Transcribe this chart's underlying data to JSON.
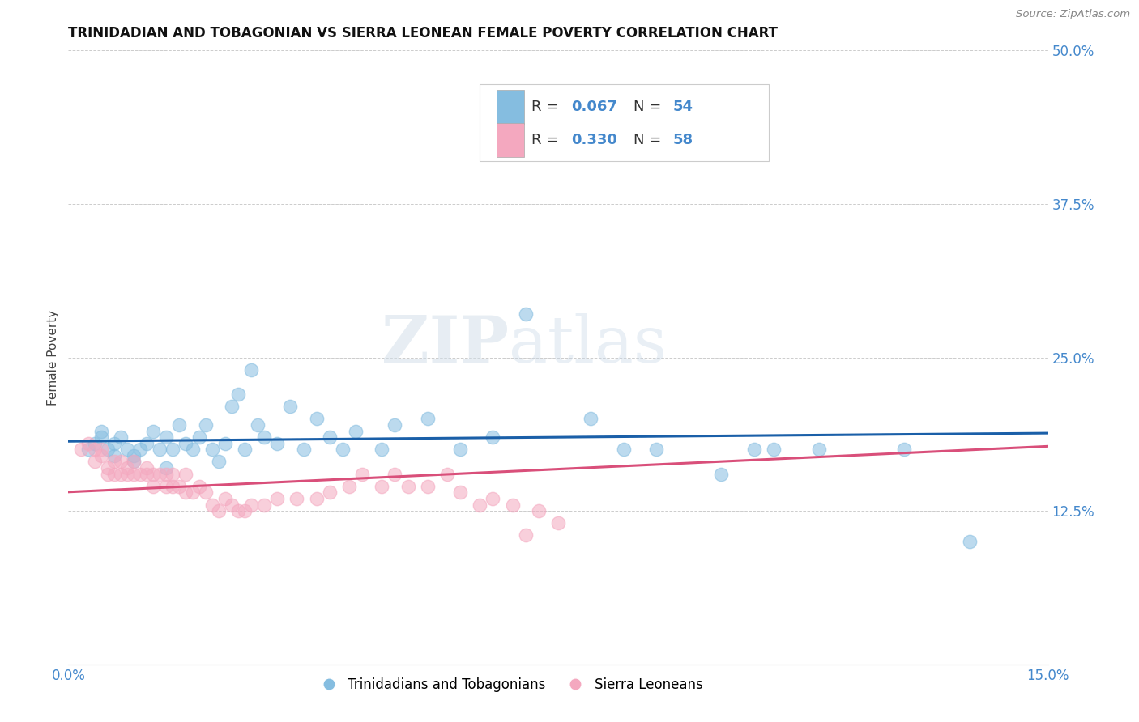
{
  "title": "TRINIDADIAN AND TOBAGONIAN VS SIERRA LEONEAN FEMALE POVERTY CORRELATION CHART",
  "source": "Source: ZipAtlas.com",
  "ylabel_label": "Female Poverty",
  "x_min": 0.0,
  "x_max": 0.15,
  "y_min": 0.0,
  "y_max": 0.5,
  "x_ticks": [
    0.0,
    0.05,
    0.1,
    0.15
  ],
  "x_tick_labels": [
    "0.0%",
    "",
    "",
    "15.0%"
  ],
  "y_ticks": [
    0.0,
    0.125,
    0.25,
    0.375,
    0.5
  ],
  "y_tick_labels": [
    "",
    "12.5%",
    "25.0%",
    "37.5%",
    "50.0%"
  ],
  "legend_bottom_label1": "Trinidadians and Tobagonians",
  "legend_bottom_label2": "Sierra Leoneans",
  "blue_color": "#85bde0",
  "pink_color": "#f4a8bf",
  "blue_line_color": "#1a5fa8",
  "pink_line_color": "#d94f7a",
  "blue_dashed_color": "#b0cfe8",
  "watermark_text": "ZIPatlas",
  "blue_scatter_x": [
    0.003,
    0.004,
    0.005,
    0.005,
    0.006,
    0.007,
    0.007,
    0.008,
    0.009,
    0.01,
    0.01,
    0.011,
    0.012,
    0.013,
    0.014,
    0.015,
    0.015,
    0.016,
    0.017,
    0.018,
    0.019,
    0.02,
    0.021,
    0.022,
    0.023,
    0.024,
    0.025,
    0.026,
    0.027,
    0.028,
    0.029,
    0.03,
    0.032,
    0.034,
    0.036,
    0.038,
    0.04,
    0.042,
    0.044,
    0.048,
    0.05,
    0.055,
    0.06,
    0.065,
    0.07,
    0.08,
    0.085,
    0.09,
    0.1,
    0.105,
    0.108,
    0.115,
    0.128,
    0.138
  ],
  "blue_scatter_y": [
    0.175,
    0.18,
    0.185,
    0.19,
    0.175,
    0.17,
    0.18,
    0.185,
    0.175,
    0.17,
    0.165,
    0.175,
    0.18,
    0.19,
    0.175,
    0.185,
    0.16,
    0.175,
    0.195,
    0.18,
    0.175,
    0.185,
    0.195,
    0.175,
    0.165,
    0.18,
    0.21,
    0.22,
    0.175,
    0.24,
    0.195,
    0.185,
    0.18,
    0.21,
    0.175,
    0.2,
    0.185,
    0.175,
    0.19,
    0.175,
    0.195,
    0.2,
    0.175,
    0.185,
    0.285,
    0.2,
    0.175,
    0.175,
    0.155,
    0.175,
    0.175,
    0.175,
    0.175,
    0.1
  ],
  "pink_scatter_x": [
    0.002,
    0.003,
    0.004,
    0.004,
    0.005,
    0.005,
    0.006,
    0.006,
    0.007,
    0.007,
    0.008,
    0.008,
    0.009,
    0.009,
    0.01,
    0.01,
    0.011,
    0.012,
    0.012,
    0.013,
    0.013,
    0.014,
    0.015,
    0.015,
    0.016,
    0.016,
    0.017,
    0.018,
    0.018,
    0.019,
    0.02,
    0.021,
    0.022,
    0.023,
    0.024,
    0.025,
    0.026,
    0.027,
    0.028,
    0.03,
    0.032,
    0.035,
    0.038,
    0.04,
    0.043,
    0.045,
    0.048,
    0.05,
    0.052,
    0.055,
    0.058,
    0.06,
    0.063,
    0.065,
    0.068,
    0.07,
    0.072,
    0.075
  ],
  "pink_scatter_y": [
    0.175,
    0.18,
    0.175,
    0.165,
    0.175,
    0.17,
    0.16,
    0.155,
    0.155,
    0.165,
    0.155,
    0.165,
    0.155,
    0.16,
    0.155,
    0.165,
    0.155,
    0.16,
    0.155,
    0.155,
    0.145,
    0.155,
    0.145,
    0.155,
    0.145,
    0.155,
    0.145,
    0.14,
    0.155,
    0.14,
    0.145,
    0.14,
    0.13,
    0.125,
    0.135,
    0.13,
    0.125,
    0.125,
    0.13,
    0.13,
    0.135,
    0.135,
    0.135,
    0.14,
    0.145,
    0.155,
    0.145,
    0.155,
    0.145,
    0.145,
    0.155,
    0.14,
    0.13,
    0.135,
    0.13,
    0.105,
    0.125,
    0.115
  ]
}
